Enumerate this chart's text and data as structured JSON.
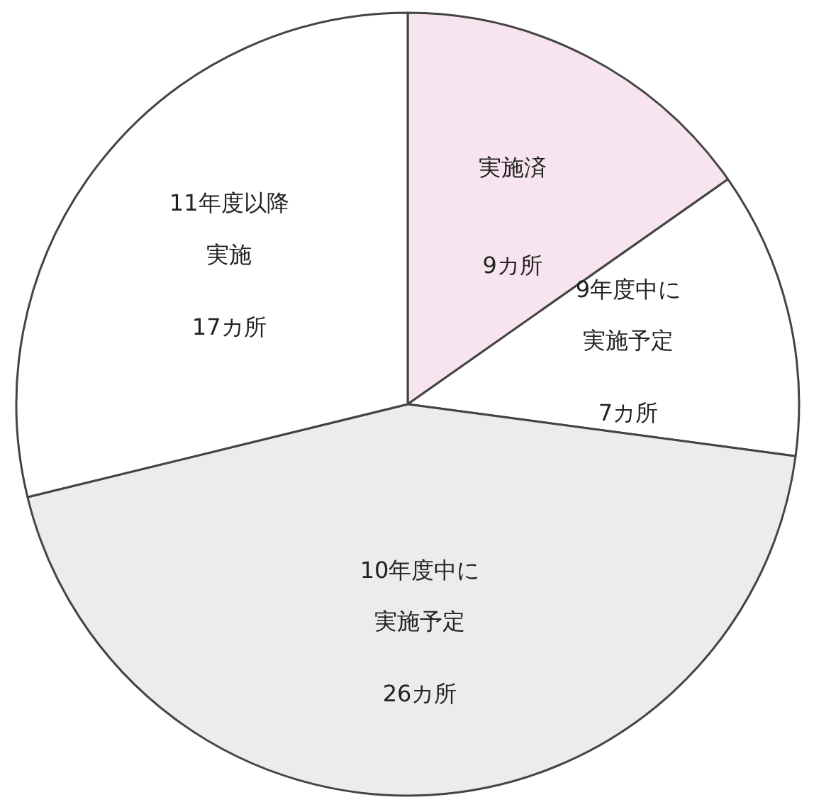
{
  "chart_data": {
    "type": "pie",
    "categories": [
      "実施済",
      "9年度中に実施予定",
      "10年度中に実施予定",
      "11年度以降実施"
    ],
    "values": [
      9,
      7,
      26,
      17
    ],
    "value_labels": [
      "9カ所",
      "7カ所",
      "26カ所",
      "17カ所"
    ],
    "colors": [
      "#f8e4ee",
      "#ffffff",
      "#ececec",
      "#ffffff"
    ]
  }
}
